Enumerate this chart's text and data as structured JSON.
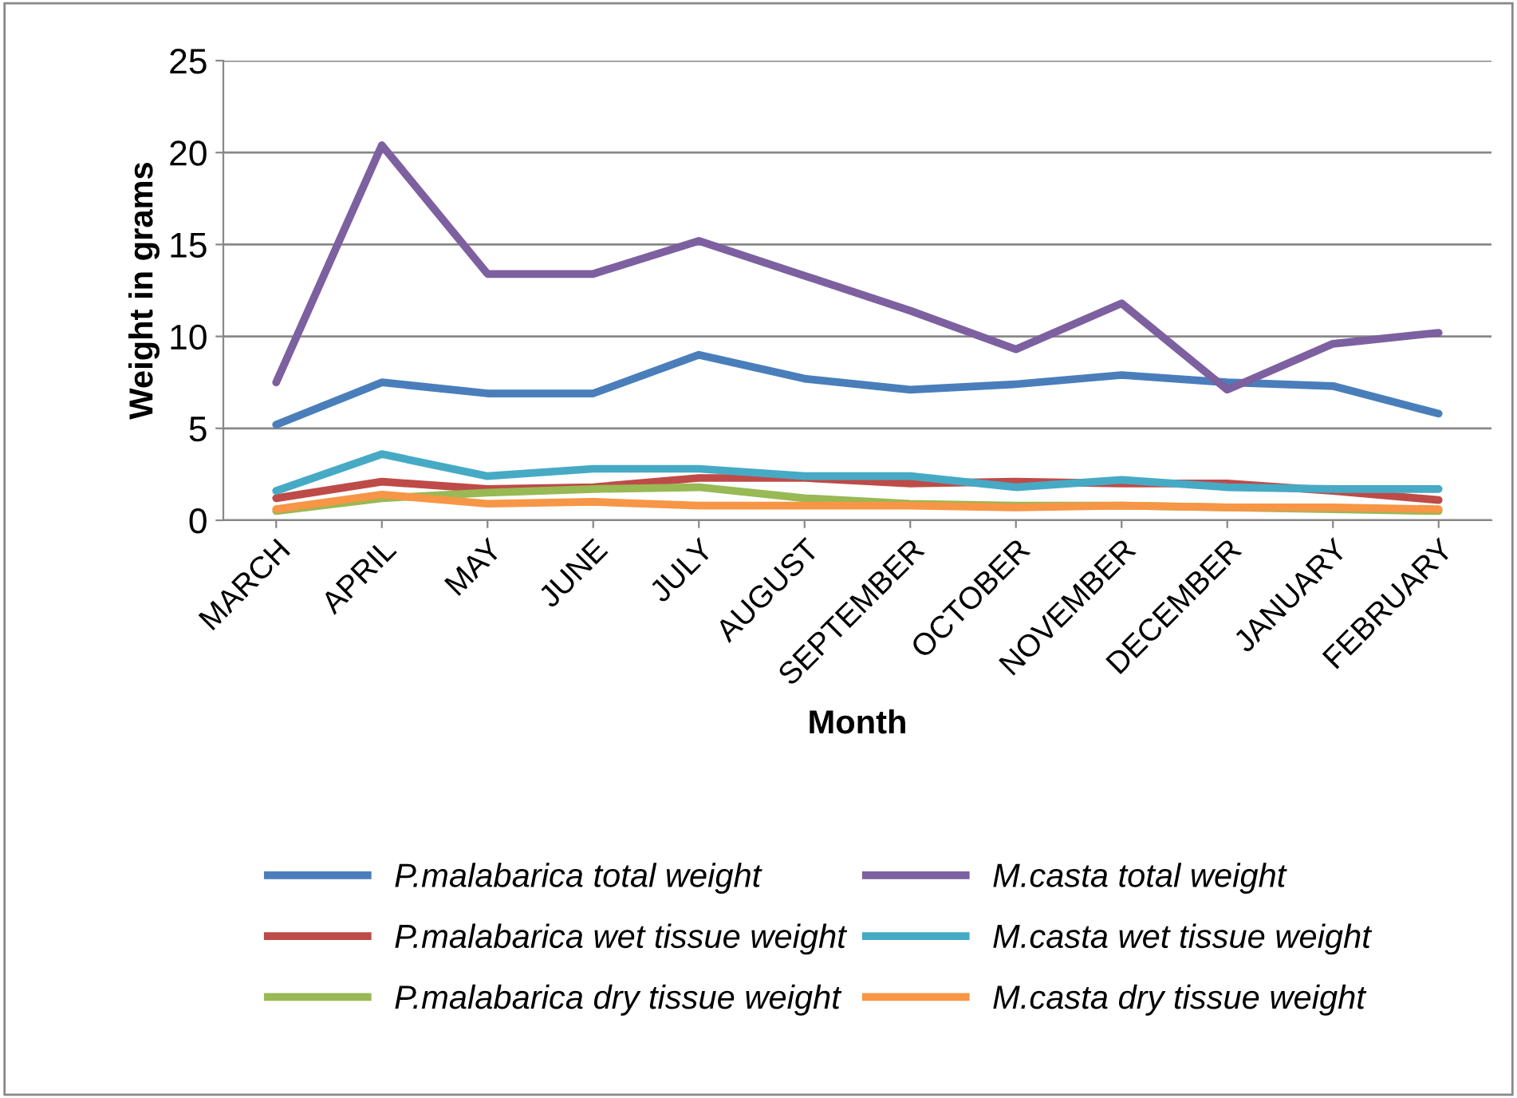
{
  "chart_data": {
    "type": "line",
    "xlabel": "Month",
    "ylabel": "Weight in grams",
    "categories": [
      "MARCH",
      "APRIL",
      "MAY",
      "JUNE",
      "JULY",
      "AUGUST",
      "SEPTEMBER",
      "OCTOBER",
      "NOVEMBER",
      "DECEMBER",
      "JANUARY",
      "FEBRUARY"
    ],
    "series": [
      {
        "name": "P.malabarica total weight",
        "color": "#4a7ebb",
        "values": [
          5.2,
          7.5,
          6.9,
          6.9,
          9.0,
          7.7,
          7.1,
          7.4,
          7.9,
          7.5,
          7.3,
          5.8
        ]
      },
      {
        "name": "P.malabarica wet tissue weight",
        "color": "#be4b48",
        "values": [
          1.2,
          2.1,
          1.7,
          1.8,
          2.3,
          2.3,
          2.0,
          2.1,
          2.0,
          2.0,
          1.6,
          1.1
        ]
      },
      {
        "name": "P.malabarica dry tissue weight",
        "color": "#98b954",
        "values": [
          0.5,
          1.2,
          1.5,
          1.7,
          1.8,
          1.2,
          0.9,
          0.8,
          0.8,
          0.7,
          0.6,
          0.5
        ]
      },
      {
        "name": "M.casta total weight",
        "color": "#7d60a0",
        "values": [
          7.5,
          20.4,
          13.4,
          13.4,
          15.2,
          13.3,
          11.4,
          9.3,
          11.8,
          7.1,
          9.6,
          10.2
        ]
      },
      {
        "name": "M.casta wet tissue weight",
        "color": "#46aac5",
        "values": [
          1.6,
          3.6,
          2.4,
          2.8,
          2.8,
          2.4,
          2.4,
          1.8,
          2.2,
          1.8,
          1.7,
          1.7
        ]
      },
      {
        "name": "M.casta dry tissue weight",
        "color": "#f79646",
        "values": [
          0.6,
          1.4,
          0.9,
          1.0,
          0.8,
          0.8,
          0.8,
          0.7,
          0.8,
          0.7,
          0.7,
          0.6
        ]
      }
    ],
    "ylim": [
      0,
      25
    ],
    "yticks": [
      0,
      5,
      10,
      15,
      20,
      25
    ],
    "grid": "y",
    "legend": "bottom",
    "marker": "none",
    "line_style": "solid"
  }
}
